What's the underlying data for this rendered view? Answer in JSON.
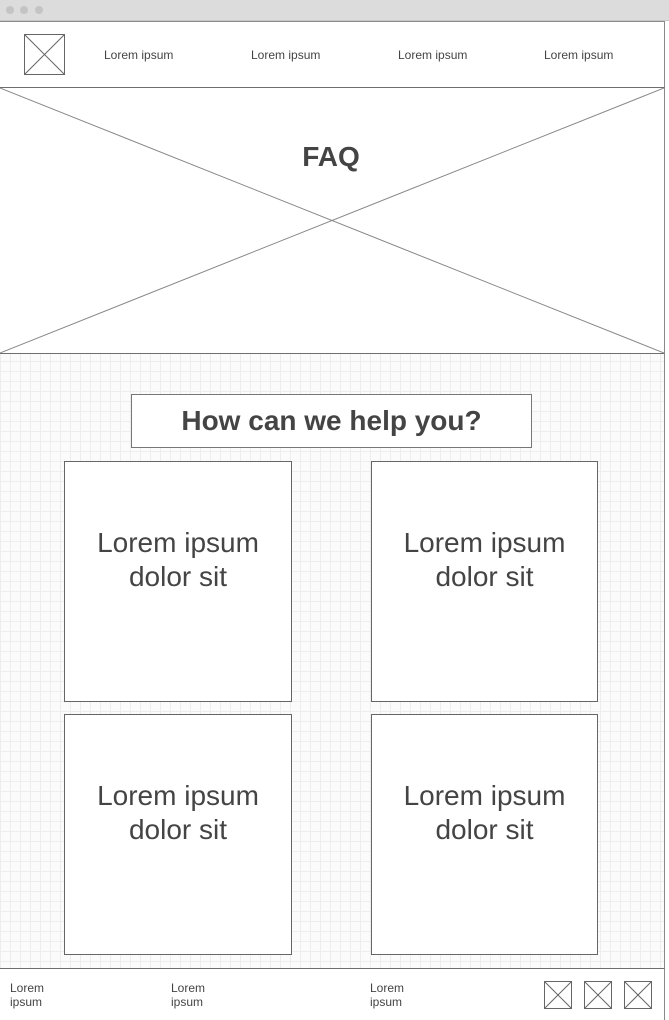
{
  "nav": {
    "links": [
      "Lorem ipsum",
      "Lorem ipsum",
      "Lorem ipsum",
      "Lorem ipsum"
    ]
  },
  "hero": {
    "title": "FAQ"
  },
  "help": {
    "heading": "How can we help you?"
  },
  "cards": [
    {
      "text": "Lorem ipsum dolor sit"
    },
    {
      "text": "Lorem ipsum dolor sit"
    },
    {
      "text": "Lorem ipsum dolor sit"
    },
    {
      "text": "Lorem ipsum dolor sit"
    }
  ],
  "footer": {
    "links": [
      "Lorem ipsum",
      "Lorem ipsum",
      "Lorem ipsum"
    ],
    "icons": [
      "image-placeholder-icon",
      "image-placeholder-icon",
      "image-placeholder-icon"
    ]
  }
}
